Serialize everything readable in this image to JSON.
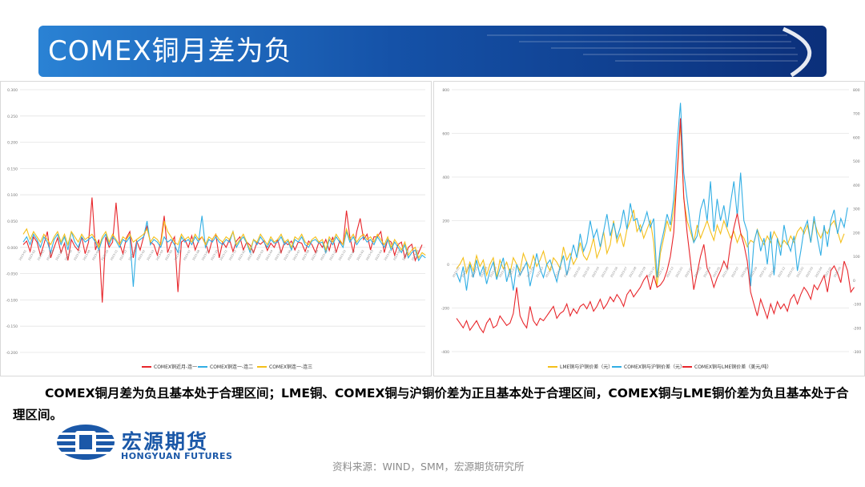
{
  "header": {
    "title": "COMEX铜月差为负"
  },
  "caption": {
    "text": "COMEX铜月差为负且基本处于合理区间；LME铜、COMEX铜与沪铜价差为正且基本处于合理区间，COMEX铜与LME铜价差为负且基本处于合理区间。"
  },
  "footer": {
    "source": "资料来源：WIND，SMM，宏源期货研究所",
    "logo_cn": "宏源期货",
    "logo_en": "HONGYUAN FUTURES"
  },
  "colors": {
    "banner_dark": "#0b2f7a",
    "banner_light": "#2a82d4",
    "red_series": "#e8262b",
    "blue_series": "#31aee4",
    "yellow_series": "#f4bf1a",
    "logo_blue": "#1b58a8"
  },
  "chart_data": [
    {
      "type": "line",
      "ylim": [
        -0.2,
        0.3
      ],
      "yticks": [
        "0.300",
        "0.250",
        "0.200",
        "0.150",
        "0.100",
        "0.050",
        "0.000",
        "-0.050",
        "-0.100",
        "-0.150",
        "-0.200"
      ],
      "grid": true,
      "legend_position": "bottom",
      "series": [
        {
          "name": "COMEX铜近月-连一",
          "color": "#e8262b",
          "values": [
            0.005,
            0.012,
            -0.008,
            0.02,
            0.01,
            -0.015,
            0.006,
            0.03,
            -0.02,
            0.0,
            0.018,
            -0.01,
            0.008,
            -0.025,
            0.015,
            0.002,
            -0.006,
            0.02,
            -0.012,
            0.01,
            0.095,
            -0.005,
            0.015,
            -0.105,
            0.02,
            0.0,
            0.01,
            0.085,
            0.008,
            -0.012,
            0.018,
            0.03,
            -0.02,
            0.012,
            -0.005,
            0.02,
            0.04,
            0.01,
            0.005,
            -0.015,
            0.01,
            0.06,
            -0.01,
            0.008,
            0.02,
            -0.085,
            0.01,
            0.015,
            0.0,
            0.022,
            -0.005,
            0.012,
            0.02,
            0.008,
            -0.01,
            0.015,
            0.025,
            -0.02,
            0.01,
            0.0,
            0.015,
            -0.008,
            0.012,
            0.02,
            -0.005,
            0.01,
            0.004,
            -0.01,
            0.01,
            0.006,
            0.012,
            -0.006,
            0.008,
            0.0,
            0.015,
            -0.01,
            0.01,
            0.005,
            0.012,
            -0.005,
            0.01,
            0.008,
            -0.008,
            0.012,
            0.005,
            -0.01,
            0.01,
            0.0,
            0.015,
            -0.006,
            0.02,
            -0.01,
            0.012,
            0.005,
            0.07,
            0.02,
            -0.01,
            0.03,
            0.055,
            0.015,
            0.025,
            -0.005,
            0.02,
            0.02,
            0.03,
            -0.01,
            0.015,
            0.01,
            -0.015,
            0.005,
            0.01,
            -0.02,
            0.0,
            0.006,
            -0.025,
            -0.01,
            0.005
          ]
        },
        {
          "name": "COMEX铜连一-连二",
          "color": "#31aee4",
          "values": [
            0.01,
            0.02,
            0.005,
            0.025,
            0.015,
            0.0,
            0.02,
            0.01,
            -0.01,
            0.015,
            0.025,
            0.005,
            0.02,
            -0.005,
            0.03,
            0.01,
            0.0,
            0.02,
            0.01,
            0.015,
            0.02,
            0.01,
            -0.005,
            0.015,
            0.025,
            0.005,
            0.02,
            0.012,
            0.0,
            0.015,
            0.01,
            0.02,
            -0.075,
            0.01,
            0.015,
            0.02,
            0.05,
            0.005,
            0.015,
            0.01,
            0.0,
            0.02,
            0.01,
            0.015,
            0.005,
            -0.01,
            0.02,
            0.01,
            0.015,
            0.005,
            0.02,
            0.01,
            0.06,
            0.0,
            0.015,
            0.01,
            0.02,
            0.01,
            0.005,
            0.015,
            0.01,
            0.03,
            0.0,
            0.012,
            0.02,
            0.008,
            -0.01,
            0.015,
            0.005,
            0.02,
            0.01,
            0.0,
            0.015,
            0.008,
            0.01,
            0.02,
            0.005,
            0.012,
            -0.005,
            0.015,
            0.01,
            0.02,
            0.005,
            0.0,
            0.012,
            0.015,
            0.008,
            0.01,
            -0.01,
            0.015,
            0.005,
            0.02,
            0.01,
            0.0,
            0.03,
            0.01,
            0.02,
            0.005,
            0.015,
            0.02,
            0.01,
            0.015,
            0.005,
            0.02,
            0.01,
            0.0,
            0.015,
            -0.005,
            0.01,
            0.0,
            -0.01,
            0.005,
            -0.02,
            -0.01,
            -0.005,
            -0.025,
            -0.015,
            -0.02
          ]
        },
        {
          "name": "COMEX铜连一-连三",
          "color": "#f4bf1a",
          "values": [
            0.025,
            0.035,
            0.015,
            0.03,
            0.02,
            0.01,
            0.025,
            0.015,
            0.005,
            0.02,
            0.03,
            0.01,
            0.025,
            0.005,
            0.03,
            0.02,
            0.01,
            0.025,
            0.015,
            0.02,
            0.025,
            0.015,
            0.0,
            0.02,
            0.03,
            0.01,
            0.025,
            0.015,
            0.005,
            0.02,
            0.015,
            0.025,
            0.01,
            0.015,
            0.02,
            0.025,
            0.035,
            0.01,
            0.02,
            0.015,
            0.005,
            0.05,
            0.03,
            0.02,
            0.01,
            0.005,
            0.025,
            0.015,
            0.02,
            0.01,
            0.025,
            0.015,
            0.02,
            0.005,
            0.02,
            0.015,
            0.025,
            0.015,
            0.01,
            0.02,
            0.015,
            0.03,
            0.005,
            0.015,
            0.025,
            0.01,
            -0.005,
            0.015,
            0.01,
            0.025,
            0.015,
            0.005,
            0.02,
            0.01,
            0.015,
            0.025,
            0.01,
            0.015,
            0.0,
            0.02,
            0.015,
            0.025,
            0.01,
            0.005,
            0.015,
            0.02,
            0.01,
            0.015,
            -0.005,
            0.02,
            0.01,
            0.025,
            0.015,
            0.005,
            0.035,
            0.015,
            0.025,
            0.01,
            0.02,
            0.025,
            0.015,
            0.02,
            0.01,
            0.025,
            0.015,
            0.005,
            0.02,
            0.0,
            0.015,
            0.005,
            -0.005,
            0.01,
            -0.015,
            -0.005,
            0.0,
            -0.02,
            -0.01,
            -0.015
          ]
        }
      ]
    },
    {
      "type": "line",
      "ylim_left": [
        -400,
        800
      ],
      "ylim_right": [
        -300,
        800
      ],
      "yticks_left": [
        "800",
        "600",
        "400",
        "200",
        "0",
        "-200",
        "-400"
      ],
      "yticks_right": [
        "800",
        "700",
        "600",
        "500",
        "400",
        "300",
        "200",
        "100",
        "0",
        "-100",
        "-200",
        "-300"
      ],
      "grid": true,
      "legend_position": "bottom",
      "series": [
        {
          "name": "LME铜与沪铜价差（元）",
          "color": "#f4bf1a",
          "axis": "left",
          "values": [
            -20,
            0,
            30,
            -40,
            10,
            -30,
            40,
            -10,
            20,
            -50,
            0,
            30,
            -60,
            20,
            -20,
            10,
            -40,
            30,
            0,
            -30,
            50,
            10,
            -20,
            40,
            -10,
            20,
            60,
            0,
            -30,
            30,
            10,
            -20,
            80,
            20,
            50,
            0,
            30,
            100,
            40,
            20,
            60,
            120,
            30,
            70,
            150,
            50,
            90,
            200,
            100,
            140,
            80,
            160,
            200,
            250,
            150,
            180,
            120,
            160,
            200,
            100,
            -100,
            50,
            120,
            200,
            150,
            250,
            400,
            650,
            300,
            200,
            150,
            100,
            180,
            120,
            160,
            200,
            150,
            110,
            180,
            140,
            200,
            160,
            120,
            150,
            100,
            140,
            120,
            80,
            110,
            100,
            160,
            120,
            90,
            130,
            100,
            150,
            120,
            80,
            110,
            90,
            130,
            100,
            150,
            170,
            140,
            180,
            100,
            200,
            150,
            120,
            160,
            140,
            180,
            200,
            150,
            100,
            140
          ]
        },
        {
          "name": "COMEX铜与沪铜价差（元）",
          "color": "#31aee4",
          "axis": "left",
          "values": [
            -40,
            -80,
            -10,
            -120,
            0,
            -60,
            20,
            -50,
            -10,
            -90,
            -30,
            10,
            -70,
            -20,
            30,
            -80,
            -20,
            -120,
            0,
            -50,
            -20,
            10,
            -100,
            -30,
            50,
            -20,
            -60,
            0,
            20,
            -30,
            -80,
            -10,
            40,
            -50,
            20,
            90,
            30,
            140,
            60,
            100,
            200,
            120,
            160,
            80,
            150,
            230,
            130,
            190,
            120,
            170,
            250,
            160,
            280,
            200,
            210,
            150,
            190,
            240,
            170,
            210,
            -60,
            80,
            150,
            230,
            180,
            300,
            550,
            740,
            420,
            300,
            180,
            100,
            130,
            250,
            300,
            200,
            380,
            150,
            300,
            200,
            270,
            170,
            280,
            380,
            220,
            420,
            200,
            150,
            -100,
            100,
            160,
            60,
            120,
            0,
            150,
            -50,
            120,
            40,
            180,
            100,
            60,
            130,
            -30,
            60,
            160,
            200,
            100,
            220,
            120,
            40,
            180,
            80,
            200,
            250,
            140,
            210,
            170,
            260
          ]
        },
        {
          "name": "COMEX铜与LME铜价差（美元/吨）",
          "color": "#e8262b",
          "axis": "right",
          "values": [
            -160,
            -180,
            -200,
            -170,
            -210,
            -190,
            -170,
            -200,
            -220,
            -180,
            -160,
            -200,
            -190,
            -150,
            -170,
            -190,
            -180,
            -140,
            -30,
            -150,
            -180,
            -200,
            -110,
            -170,
            -190,
            -160,
            -170,
            -150,
            -130,
            -110,
            -160,
            -140,
            -130,
            -100,
            -150,
            -120,
            -140,
            -110,
            -100,
            -120,
            -90,
            -130,
            -110,
            -80,
            -120,
            -100,
            -70,
            -90,
            -60,
            -80,
            -110,
            -60,
            -40,
            -70,
            -50,
            -30,
            0,
            20,
            -40,
            20,
            -30,
            -20,
            0,
            40,
            100,
            200,
            450,
            680,
            350,
            200,
            80,
            -40,
            30,
            100,
            150,
            50,
            20,
            -30,
            10,
            40,
            80,
            50,
            150,
            220,
            280,
            200,
            150,
            80,
            -50,
            -100,
            -150,
            -80,
            -120,
            -160,
            -100,
            -140,
            -90,
            -120,
            -100,
            -130,
            -80,
            -60,
            -100,
            -60,
            -30,
            -50,
            -80,
            -20,
            -40,
            -10,
            20,
            -50,
            40,
            60,
            30,
            -10,
            80,
            40,
            -50,
            -30
          ]
        }
      ]
    }
  ]
}
